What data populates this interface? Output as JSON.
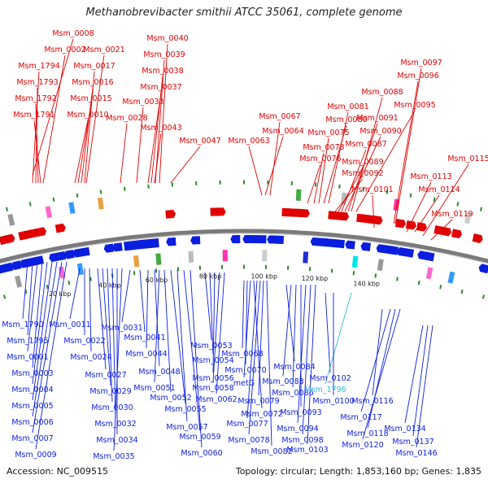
{
  "title": "Methanobrevibacter smithii ATCC 35061, complete genome",
  "footer": {
    "accession": "Accession: NC_009515",
    "topology": "Topology: circular; Length: 1,853,160 bp; Genes: 1,835"
  },
  "colors": {
    "forward": "#e00000",
    "reverse": "#0a1ee0",
    "highlight": "#33bbdd",
    "backbone": "#7a7a7a",
    "tick": "#2e8b2e"
  },
  "scale_labels": [
    "20 kbp",
    "40 kbp",
    "60 kbp",
    "80 kbp",
    "100 kbp",
    "120 kbp",
    "140 kbp"
  ],
  "top_labels": [
    "Msm_0008",
    "Msm_0002",
    "Msm_1794",
    "Msm_1793",
    "Msm_1792",
    "Msm_1791",
    "Msm_0021",
    "Msm_0017",
    "Msm_0016",
    "Msm_0015",
    "Msm_0010",
    "Msm_0040",
    "Msm_0039",
    "Msm_0038",
    "Msm_0037",
    "Msm_0033",
    "Msm_0028",
    "Msm_0043",
    "Msm_0047",
    "Msm_0067",
    "Msm_0064",
    "Msm_0063",
    "Msm_0081",
    "Msm_0080",
    "Msm_0075",
    "Msm_0073",
    "Msm_0076",
    "Msm_0088",
    "Msm_0095",
    "Msm_0091",
    "Msm_0090",
    "Msm_0087",
    "Msm_0089",
    "Msm_0092",
    "Msm_0097",
    "Msm_0096",
    "Msm_0101",
    "Msm_0113",
    "Msm_0114",
    "Msm_0115",
    "Msm_0119"
  ],
  "bottom_labels": [
    "Msm_1790",
    "Msm_1795",
    "Msm_0001",
    "Msm_0003",
    "Msm_0004",
    "Msm_0005",
    "Msm_0006",
    "Msm_0007",
    "Msm_0009",
    "Msm_0011",
    "Msm_0022",
    "Msm_0024",
    "Msm_0027",
    "Msm_0029",
    "Msm_0030",
    "Msm_0032",
    "Msm_0034",
    "Msm_0035",
    "Msm_0031",
    "Msm_0041",
    "Msm_0044",
    "Msm_0048",
    "Msm_0051",
    "Msm_0052",
    "Msm_0055",
    "Msm_0057",
    "Msm_0059",
    "Msm_0060",
    "Msm_0053",
    "Msm_0054",
    "Msm_0056",
    "Msm_0058",
    "Msm_0062",
    "Msm_0068",
    "Msm_0070",
    "metG",
    "Msm_0072",
    "Msm_0077",
    "Msm_0078",
    "Msm_0079",
    "Msm_0082",
    "Msm_0084",
    "Msm_0083",
    "Msm_0086",
    "Msm_0093",
    "Msm_0094",
    "Msm_0098",
    "Msm_0103",
    "Msm_0102",
    "Msm_1796",
    "Msm_0100",
    "Msm_0116",
    "Msm_0117",
    "Msm_0118",
    "Msm_0120",
    "Msm_0134",
    "Msm_0137",
    "Msm_0146"
  ]
}
